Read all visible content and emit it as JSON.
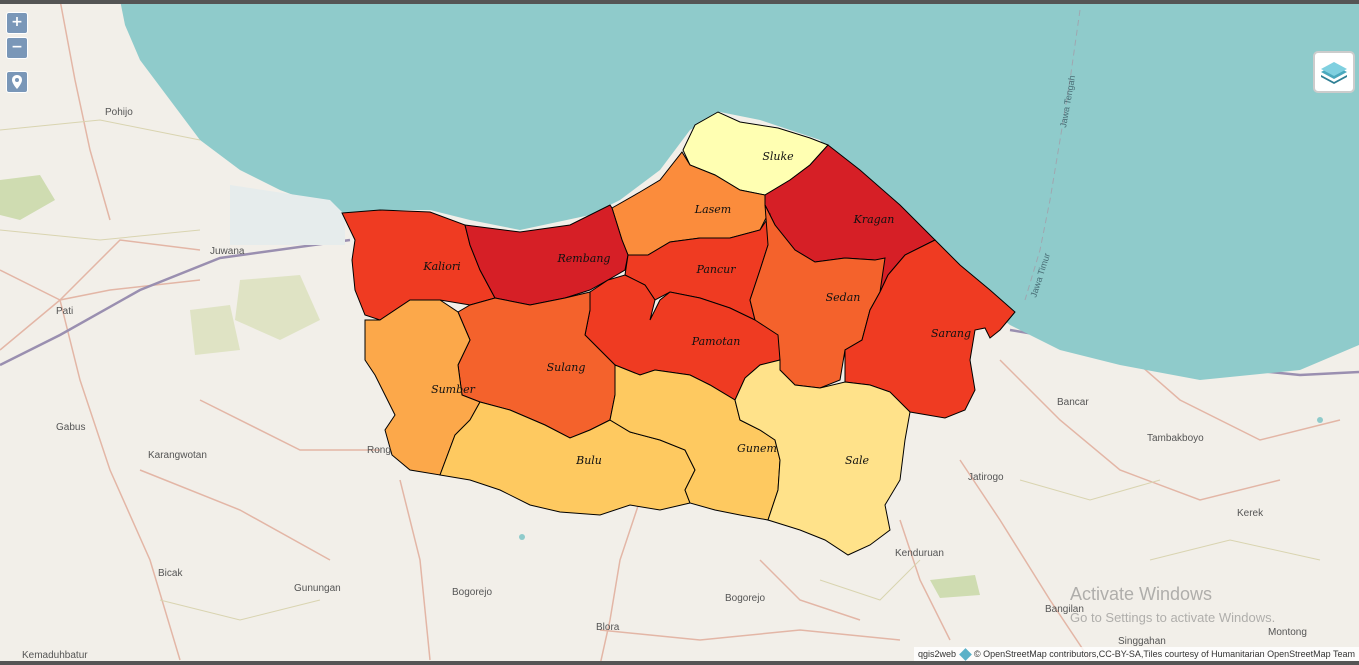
{
  "controls": {
    "zoom_in_label": "+",
    "zoom_out_label": "−",
    "locate_icon": "map-pin-icon",
    "layers_icon": "layers-icon"
  },
  "colors": {
    "sea": "#8fcbcb",
    "land": "#f2efe9",
    "very_high": "#d61f26",
    "high": "#ef3b22",
    "mid_high": "#f4622c",
    "mid": "#fb8c3c",
    "mid_low": "#fca84a",
    "low": "#fec960",
    "very_low": "#ffe28a",
    "lowest": "#ffffb2"
  },
  "districts": [
    {
      "name": "Sluke"
    },
    {
      "name": "Lasem"
    },
    {
      "name": "Kragan"
    },
    {
      "name": "Kaliori"
    },
    {
      "name": "Rembang"
    },
    {
      "name": "Pancur"
    },
    {
      "name": "Sedan"
    },
    {
      "name": "Sarang"
    },
    {
      "name": "Pamotan"
    },
    {
      "name": "Sulang"
    },
    {
      "name": "Sumber"
    },
    {
      "name": "Bulu"
    },
    {
      "name": "Gunem"
    },
    {
      "name": "Sale"
    }
  ],
  "places": [
    "Pohijo",
    "Juwana",
    "Pati",
    "Gabus",
    "Karangwotan",
    "Bicak",
    "Gunungan",
    "Bogorejo",
    "Bogorejo",
    "Blora",
    "Kemaduhbatur",
    "Kenduruan",
    "Bangilan",
    "Singgahan",
    "Montong",
    "Jatirogo",
    "Bancar",
    "Tambakboyo",
    "Kerek",
    "Rong"
  ],
  "boundary_labels": [
    "Jawa Tengah",
    "Jawa Timur"
  ],
  "attribution": {
    "qgis": "qgis2web",
    "osm": "© OpenStreetMap contributors,CC-BY-SA,Tiles courtesy of Humanitarian OpenStreetMap Team"
  },
  "watermark": {
    "title": "Activate Windows",
    "subtitle": "Go to Settings to activate Windows."
  }
}
